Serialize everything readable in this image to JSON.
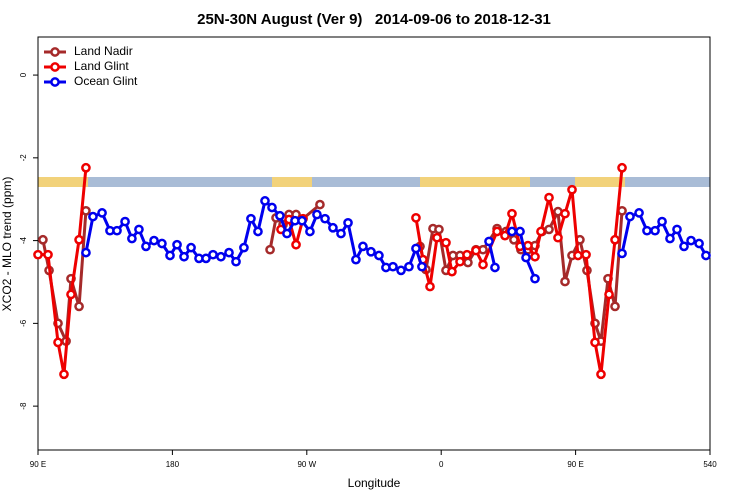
{
  "chart_data": {
    "type": "line",
    "title": "25N-30N August (Ver 9)   2014-09-06 to 2018-12-31",
    "xlabel": "Longitude",
    "ylabel": "XCO2 - MLO trend (ppm)",
    "xlim": [
      90,
      540
    ],
    "ylim": [
      -9.06,
      0.92
    ],
    "xticks": [
      {
        "value": 90,
        "label": "90 E"
      },
      180,
      {
        "value": 270,
        "label": "90 W"
      },
      {
        "value": 360,
        "label": "0"
      },
      {
        "value": 450,
        "label": "90 E"
      },
      540
    ],
    "yticks": [
      0,
      -2,
      -4,
      -6,
      -8
    ],
    "legend": "top-left",
    "series": [
      {
        "name": "Land Nadir",
        "color": "#a52a2a",
        "x": [
          93.3,
          97.4,
          103.4,
          108.8,
          112.1,
          117.5,
          122.1,
          null,
          245.4,
          249.4,
          254.1,
          258.1,
          262.8,
          266.8,
          278.8,
          null,
          345.8,
          349.8,
          354.5,
          358.5,
          363.2,
          367.9,
          372.6,
          377.9,
          383.3,
          388.0,
          397.4,
          403.4,
          408.7,
          413.4,
          418.1,
          422.8,
          427.5,
          432.2,
          438.2,
          442.9,
          447.6,
          452.9,
          457.6,
          463.0,
          467.0,
          471.7,
          476.4,
          481.1
        ],
        "values": [
          -3.98,
          -4.72,
          -6.0,
          -6.43,
          -4.92,
          -5.59,
          -3.28,
          null,
          -4.22,
          -3.45,
          -3.61,
          -3.37,
          -3.37,
          -3.49,
          -3.13,
          null,
          -4.14,
          -4.7,
          -3.71,
          -3.73,
          -4.72,
          -4.36,
          -4.36,
          -4.53,
          -4.22,
          -4.22,
          -3.71,
          -3.78,
          -3.98,
          -4.22,
          -4.22,
          -4.12,
          -3.78,
          -3.73,
          -3.3,
          -4.99,
          -4.36,
          -3.98,
          -4.72,
          -6.0,
          -6.43,
          -4.92,
          -5.59,
          -3.28
        ]
      },
      {
        "name": "Land Glint",
        "color": "#ee0000",
        "x": [
          90,
          96.7,
          103.4,
          107.4,
          112.1,
          117.5,
          122.1,
          null,
          252.7,
          258.1,
          262.8,
          267.5,
          null,
          343.1,
          347.8,
          352.5,
          357.2,
          363.2,
          367.2,
          372.6,
          377.3,
          383.3,
          388.0,
          397.4,
          402.7,
          407.4,
          412.8,
          418.1,
          422.8,
          426.8,
          432.2,
          438.2,
          442.9,
          447.6,
          451.6,
          457.0,
          463.0,
          467.0,
          472.4,
          476.4,
          481.1
        ],
        "values": [
          -4.34,
          -4.34,
          -6.46,
          -7.23,
          -5.3,
          -3.98,
          -2.24,
          null,
          -3.73,
          -3.49,
          -4.1,
          -3.47,
          null,
          -3.45,
          -4.46,
          -5.11,
          -3.93,
          -4.05,
          -4.75,
          -4.51,
          -4.34,
          -4.24,
          -4.58,
          -3.78,
          -3.88,
          -3.35,
          -4.14,
          -4.12,
          -4.39,
          -3.78,
          -2.96,
          -3.93,
          -3.35,
          -2.77,
          -4.36,
          -4.34,
          -6.46,
          -7.23,
          -5.3,
          -3.98,
          -2.24
        ]
      },
      {
        "name": "Ocean Glint",
        "color": "#0000ee",
        "x": [
          122.1,
          126.8,
          132.9,
          138.2,
          142.9,
          148.3,
          152.9,
          157.6,
          162.3,
          167.7,
          173.0,
          178.4,
          183.1,
          187.8,
          192.5,
          197.8,
          202.5,
          207.2,
          212.5,
          217.9,
          222.6,
          227.9,
          232.6,
          237.3,
          242.0,
          246.7,
          252.0,
          256.7,
          262.1,
          266.8,
          272.1,
          276.8,
          282.2,
          287.5,
          292.9,
          297.6,
          302.9,
          307.6,
          313.0,
          318.3,
          323.0,
          327.7,
          333.1,
          338.4,
          343.1,
          347.1,
          null,
          392.0,
          396.0,
          null,
          407.4,
          412.8,
          416.8,
          422.8,
          null,
          481.1,
          486.4,
          492.5,
          497.8,
          503.2,
          507.9,
          513.2,
          517.9,
          522.6,
          527.3,
          532.7,
          537.3
        ],
        "values": [
          -4.29,
          -3.42,
          -3.33,
          -3.76,
          -3.76,
          -3.54,
          -3.95,
          -3.73,
          -4.14,
          -4.0,
          -4.07,
          -4.36,
          -4.1,
          -4.39,
          -4.17,
          -4.43,
          -4.43,
          -4.34,
          -4.39,
          -4.29,
          -4.51,
          -4.17,
          -3.47,
          -3.78,
          -3.04,
          -3.2,
          -3.4,
          -3.83,
          -3.52,
          -3.52,
          -3.78,
          -3.37,
          -3.47,
          -3.69,
          -3.83,
          -3.57,
          -4.46,
          -4.14,
          -4.27,
          -4.36,
          -4.65,
          -4.63,
          -4.72,
          -4.63,
          -4.19,
          -4.63,
          null,
          -4.02,
          -4.65,
          null,
          -3.78,
          -3.78,
          -4.41,
          -4.92,
          null,
          -4.31,
          -3.42,
          -3.33,
          -3.76,
          -3.76,
          -3.54,
          -3.95,
          -3.73,
          -4.14,
          -4.0,
          -4.07,
          -4.36
        ]
      }
    ]
  }
}
